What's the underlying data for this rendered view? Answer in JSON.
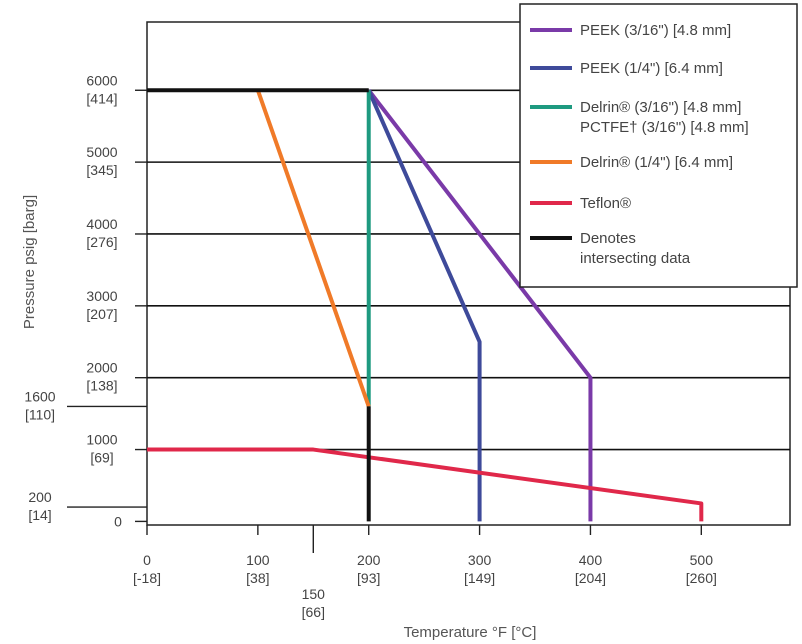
{
  "chart_data": {
    "type": "line",
    "xlabel": "Temperature °F [°C]",
    "ylabel": "Pressure psig [barg]",
    "xlim": [
      0,
      580
    ],
    "ylim": [
      -50,
      6950
    ],
    "grid": "horizontal",
    "legend_position": "top-right",
    "x_ticks": [
      {
        "value": 0,
        "label": "0",
        "sublabel": "[-18]"
      },
      {
        "value": 100,
        "label": "100",
        "sublabel": "[38]"
      },
      {
        "value": 150,
        "label": "150",
        "sublabel": "[66]"
      },
      {
        "value": 200,
        "label": "200",
        "sublabel": "[93]"
      },
      {
        "value": 300,
        "label": "300",
        "sublabel": "[149]"
      },
      {
        "value": 400,
        "label": "400",
        "sublabel": "[204]"
      },
      {
        "value": 500,
        "label": "500",
        "sublabel": "[260]"
      }
    ],
    "y_ticks": [
      {
        "value": 0,
        "label": "0",
        "sublabel": ""
      },
      {
        "value": 200,
        "label": "200",
        "sublabel": "[14]"
      },
      {
        "value": 1000,
        "label": "1000",
        "sublabel": "[69]"
      },
      {
        "value": 1600,
        "label": "1600",
        "sublabel": "[110]"
      },
      {
        "value": 2000,
        "label": "2000",
        "sublabel": "[138]"
      },
      {
        "value": 3000,
        "label": "3000",
        "sublabel": "[207]"
      },
      {
        "value": 4000,
        "label": "4000",
        "sublabel": "[276]"
      },
      {
        "value": 5000,
        "label": "5000",
        "sublabel": "[345]"
      },
      {
        "value": 6000,
        "label": "6000",
        "sublabel": "[414]"
      }
    ],
    "series": [
      {
        "name": "PEEK (3/16\") [4.8 mm]",
        "color": "#7a3aa8",
        "points": [
          [
            200,
            6000
          ],
          [
            400,
            2000
          ],
          [
            400,
            0
          ]
        ]
      },
      {
        "name": "PEEK (1/4\") [6.4 mm]",
        "color": "#3e4a9a",
        "points": [
          [
            200,
            6000
          ],
          [
            300,
            2500
          ],
          [
            300,
            0
          ]
        ]
      },
      {
        "name": "Delrin® (3/16\") [4.8 mm]\nPCTFE† (3/16\") [4.8 mm]",
        "color": "#1e9a80",
        "points": [
          [
            200,
            6000
          ],
          [
            200,
            1600
          ]
        ]
      },
      {
        "name": "Delrin® (1/4\") [6.4 mm]",
        "color": "#f07a28",
        "points": [
          [
            100,
            6000
          ],
          [
            200,
            1600
          ]
        ]
      },
      {
        "name": "Teflon®",
        "color": "#e0284a",
        "points": [
          [
            0,
            1000
          ],
          [
            150,
            1000
          ],
          [
            500,
            250
          ],
          [
            500,
            0
          ]
        ]
      },
      {
        "name": "Denotes\nintersecting data",
        "color": "#111111",
        "points": [
          [
            0,
            6000
          ],
          [
            200,
            6000
          ]
        ],
        "extra_segments": [
          [
            [
              200,
              1600
            ],
            [
              200,
              0
            ]
          ]
        ]
      }
    ]
  }
}
